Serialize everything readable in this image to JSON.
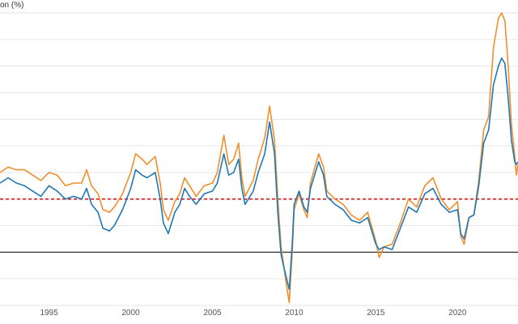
{
  "chart_data": {
    "type": "line",
    "ylabel": "on (%)",
    "x_tick_labels": [
      "1995",
      "2000",
      "2005",
      "2010",
      "2015",
      "2020"
    ],
    "xlim": [
      1992.0,
      2023.7
    ],
    "ylim": [
      -2,
      9
    ],
    "grid": true,
    "legend": "none",
    "reference_lines": [
      {
        "value": 2,
        "style": "dashed",
        "color": "#d62728"
      },
      {
        "value": 0,
        "style": "solid",
        "color": "#333333"
      }
    ],
    "series": [
      {
        "color": "#f28e2b",
        "points": [
          [
            1992.0,
            3.0
          ],
          [
            1992.5,
            3.2
          ],
          [
            1993.0,
            3.1
          ],
          [
            1993.5,
            3.1
          ],
          [
            1994.0,
            2.9
          ],
          [
            1994.5,
            2.7
          ],
          [
            1995.0,
            3.0
          ],
          [
            1995.5,
            2.9
          ],
          [
            1996.0,
            2.5
          ],
          [
            1996.5,
            2.6
          ],
          [
            1997.0,
            2.6
          ],
          [
            1997.3,
            3.1
          ],
          [
            1997.6,
            2.5
          ],
          [
            1998.0,
            2.2
          ],
          [
            1998.3,
            1.6
          ],
          [
            1998.7,
            1.5
          ],
          [
            1999.0,
            1.7
          ],
          [
            1999.5,
            2.2
          ],
          [
            2000.0,
            3.0
          ],
          [
            2000.3,
            3.7
          ],
          [
            2000.7,
            3.5
          ],
          [
            2001.0,
            3.3
          ],
          [
            2001.5,
            3.6
          ],
          [
            2001.8,
            2.6
          ],
          [
            2002.0,
            1.6
          ],
          [
            2002.3,
            1.2
          ],
          [
            2002.7,
            1.9
          ],
          [
            2003.0,
            2.2
          ],
          [
            2003.3,
            2.8
          ],
          [
            2003.6,
            2.5
          ],
          [
            2004.0,
            2.1
          ],
          [
            2004.5,
            2.5
          ],
          [
            2005.0,
            2.6
          ],
          [
            2005.3,
            3.0
          ],
          [
            2005.7,
            4.4
          ],
          [
            2006.0,
            3.3
          ],
          [
            2006.3,
            3.5
          ],
          [
            2006.6,
            4.1
          ],
          [
            2006.8,
            2.8
          ],
          [
            2007.0,
            2.1
          ],
          [
            2007.5,
            2.7
          ],
          [
            2007.8,
            3.5
          ],
          [
            2008.2,
            4.3
          ],
          [
            2008.5,
            5.5
          ],
          [
            2008.8,
            4.2
          ],
          [
            2009.0,
            2.0
          ],
          [
            2009.2,
            0.2
          ],
          [
            2009.5,
            -1.1
          ],
          [
            2009.7,
            -1.9
          ],
          [
            2009.9,
            0.2
          ],
          [
            2010.0,
            1.6
          ],
          [
            2010.3,
            2.2
          ],
          [
            2010.6,
            1.6
          ],
          [
            2010.8,
            1.3
          ],
          [
            2011.0,
            2.6
          ],
          [
            2011.5,
            3.7
          ],
          [
            2011.8,
            3.2
          ],
          [
            2012.0,
            2.3
          ],
          [
            2012.5,
            2.0
          ],
          [
            2013.0,
            1.8
          ],
          [
            2013.5,
            1.4
          ],
          [
            2014.0,
            1.2
          ],
          [
            2014.5,
            1.5
          ],
          [
            2015.0,
            0.4
          ],
          [
            2015.2,
            -0.2
          ],
          [
            2015.5,
            0.2
          ],
          [
            2016.0,
            0.3
          ],
          [
            2016.5,
            1.1
          ],
          [
            2017.0,
            2.0
          ],
          [
            2017.5,
            1.7
          ],
          [
            2018.0,
            2.5
          ],
          [
            2018.5,
            2.8
          ],
          [
            2019.0,
            2.0
          ],
          [
            2019.5,
            1.6
          ],
          [
            2020.0,
            1.9
          ],
          [
            2020.2,
            0.6
          ],
          [
            2020.4,
            0.3
          ],
          [
            2020.7,
            1.3
          ],
          [
            2021.0,
            1.4
          ],
          [
            2021.3,
            2.7
          ],
          [
            2021.6,
            4.6
          ],
          [
            2021.9,
            5.1
          ],
          [
            2022.2,
            7.7
          ],
          [
            2022.5,
            8.8
          ],
          [
            2022.7,
            9.0
          ],
          [
            2022.9,
            8.7
          ],
          [
            2023.1,
            7.0
          ],
          [
            2023.3,
            4.8
          ],
          [
            2023.5,
            3.6
          ],
          [
            2023.6,
            2.9
          ],
          [
            2023.7,
            3.3
          ]
        ]
      },
      {
        "color": "#1f77b4",
        "points": [
          [
            1992.0,
            2.6
          ],
          [
            1992.5,
            2.8
          ],
          [
            1993.0,
            2.6
          ],
          [
            1993.5,
            2.5
          ],
          [
            1994.0,
            2.3
          ],
          [
            1994.5,
            2.1
          ],
          [
            1995.0,
            2.5
          ],
          [
            1995.5,
            2.3
          ],
          [
            1996.0,
            2.0
          ],
          [
            1996.5,
            2.1
          ],
          [
            1997.0,
            2.0
          ],
          [
            1997.3,
            2.4
          ],
          [
            1997.6,
            1.8
          ],
          [
            1998.0,
            1.5
          ],
          [
            1998.3,
            0.9
          ],
          [
            1998.7,
            0.8
          ],
          [
            1999.0,
            1.0
          ],
          [
            1999.5,
            1.6
          ],
          [
            2000.0,
            2.4
          ],
          [
            2000.3,
            3.1
          ],
          [
            2000.7,
            2.9
          ],
          [
            2001.0,
            2.8
          ],
          [
            2001.5,
            3.0
          ],
          [
            2001.8,
            2.0
          ],
          [
            2002.0,
            1.1
          ],
          [
            2002.3,
            0.7
          ],
          [
            2002.7,
            1.5
          ],
          [
            2003.0,
            1.8
          ],
          [
            2003.3,
            2.4
          ],
          [
            2003.6,
            2.1
          ],
          [
            2004.0,
            1.8
          ],
          [
            2004.5,
            2.2
          ],
          [
            2005.0,
            2.3
          ],
          [
            2005.3,
            2.6
          ],
          [
            2005.7,
            3.7
          ],
          [
            2006.0,
            2.9
          ],
          [
            2006.3,
            3.0
          ],
          [
            2006.6,
            3.5
          ],
          [
            2006.8,
            2.4
          ],
          [
            2007.0,
            1.8
          ],
          [
            2007.5,
            2.3
          ],
          [
            2007.8,
            3.0
          ],
          [
            2008.2,
            3.7
          ],
          [
            2008.5,
            4.9
          ],
          [
            2008.8,
            3.7
          ],
          [
            2009.0,
            1.5
          ],
          [
            2009.2,
            -0.1
          ],
          [
            2009.5,
            -0.9
          ],
          [
            2009.7,
            -1.4
          ],
          [
            2009.9,
            0.5
          ],
          [
            2010.0,
            1.8
          ],
          [
            2010.3,
            2.3
          ],
          [
            2010.6,
            1.7
          ],
          [
            2010.8,
            1.5
          ],
          [
            2011.0,
            2.4
          ],
          [
            2011.5,
            3.4
          ],
          [
            2011.8,
            2.9
          ],
          [
            2012.0,
            2.1
          ],
          [
            2012.5,
            1.8
          ],
          [
            2013.0,
            1.6
          ],
          [
            2013.5,
            1.2
          ],
          [
            2014.0,
            1.1
          ],
          [
            2014.5,
            1.3
          ],
          [
            2015.0,
            0.3
          ],
          [
            2015.2,
            0.1
          ],
          [
            2015.5,
            0.2
          ],
          [
            2016.0,
            0.1
          ],
          [
            2016.5,
            0.9
          ],
          [
            2017.0,
            1.7
          ],
          [
            2017.5,
            1.5
          ],
          [
            2018.0,
            2.2
          ],
          [
            2018.5,
            2.4
          ],
          [
            2019.0,
            1.8
          ],
          [
            2019.5,
            1.5
          ],
          [
            2020.0,
            1.6
          ],
          [
            2020.2,
            0.7
          ],
          [
            2020.4,
            0.5
          ],
          [
            2020.7,
            1.3
          ],
          [
            2021.0,
            1.4
          ],
          [
            2021.3,
            2.5
          ],
          [
            2021.6,
            4.1
          ],
          [
            2021.9,
            4.6
          ],
          [
            2022.2,
            6.3
          ],
          [
            2022.5,
            7.0
          ],
          [
            2022.7,
            7.3
          ],
          [
            2022.9,
            7.1
          ],
          [
            2023.1,
            5.8
          ],
          [
            2023.3,
            4.2
          ],
          [
            2023.5,
            3.4
          ],
          [
            2023.6,
            3.3
          ],
          [
            2023.7,
            3.4
          ]
        ]
      }
    ]
  }
}
